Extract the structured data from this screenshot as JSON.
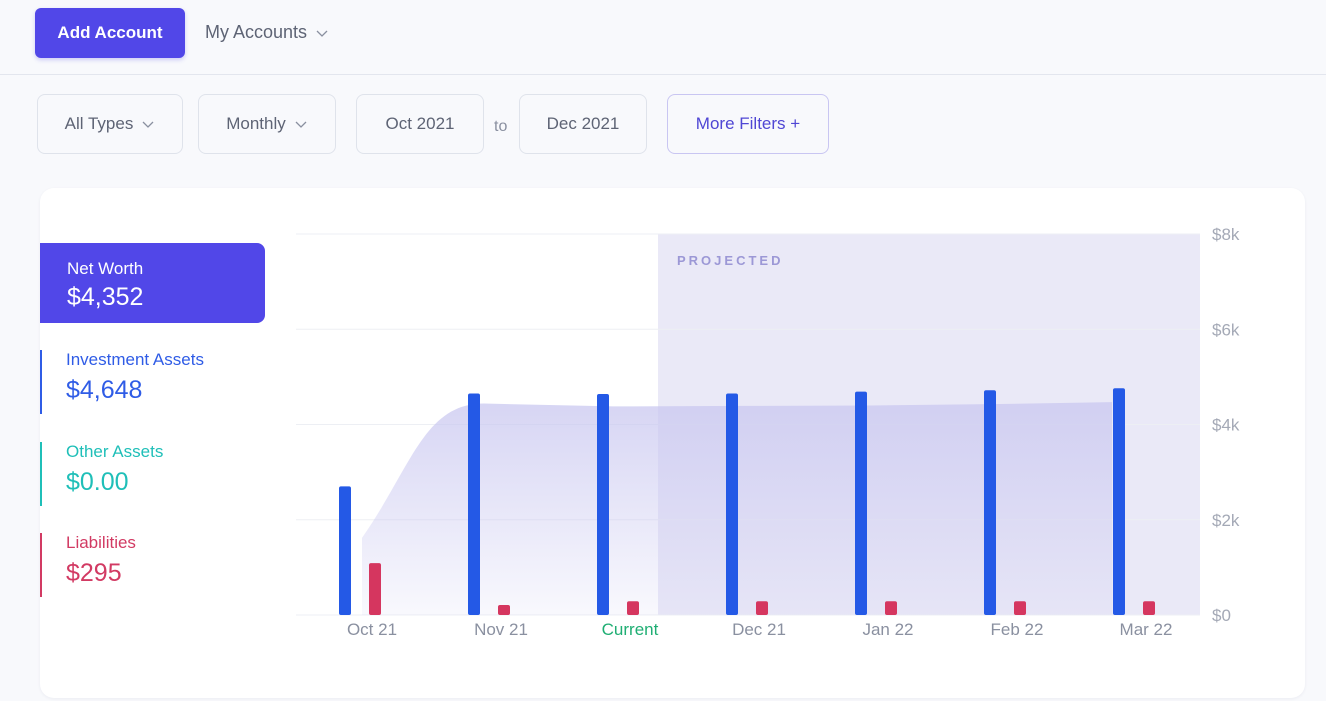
{
  "header": {
    "add_account_label": "Add Account",
    "my_accounts_label": "My Accounts"
  },
  "filters": {
    "type_label": "All Types",
    "period_label": "Monthly",
    "from_date": "Oct 2021",
    "to_label": "to",
    "to_date": "Dec 2021",
    "more_filters_label": "More Filters +"
  },
  "summary": {
    "net_worth": {
      "label": "Net Worth",
      "value": "$4,352"
    },
    "investment_assets": {
      "label": "Investment Assets",
      "value": "$4,648",
      "color": "#2f5ce6"
    },
    "other_assets": {
      "label": "Other Assets",
      "value": "$0.00",
      "color": "#1fbfb8"
    },
    "liabilities": {
      "label": "Liabilities",
      "value": "$295",
      "color": "#d23a63"
    }
  },
  "colors": {
    "primary": "#5147e8",
    "investment_bar": "#2459e6",
    "liability_bar": "#d5365f",
    "net_worth_area": "#c9c7f0",
    "projected_band": "#e6e5f6",
    "current_label": "#1fae73"
  },
  "chart_data": {
    "type": "bar",
    "title": "",
    "categories": [
      "Oct 21",
      "Nov 21",
      "Current",
      "Dec 21",
      "Jan 22",
      "Feb 22",
      "Mar 22"
    ],
    "highlight_category": "Current",
    "projected_label": "PROJECTED",
    "projected_from_index": 3,
    "series": [
      {
        "name": "Investment Assets",
        "kind": "bar",
        "values": [
          2700,
          4650,
          4640,
          4650,
          4690,
          4720,
          4760
        ]
      },
      {
        "name": "Liabilities",
        "kind": "bar",
        "values": [
          1090,
          210,
          290,
          290,
          290,
          290,
          290
        ]
      },
      {
        "name": "Net Worth",
        "kind": "area",
        "values": [
          1620,
          4440,
          4380,
          4390,
          4400,
          4430,
          4470
        ]
      }
    ],
    "y_axis": {
      "position": "right",
      "ylim": [
        0,
        8000
      ],
      "ticks": [
        0,
        2000,
        4000,
        6000,
        8000
      ],
      "tick_labels": [
        "$0",
        "$2k",
        "$4k",
        "$6k",
        "$8k"
      ]
    },
    "grid": true
  }
}
